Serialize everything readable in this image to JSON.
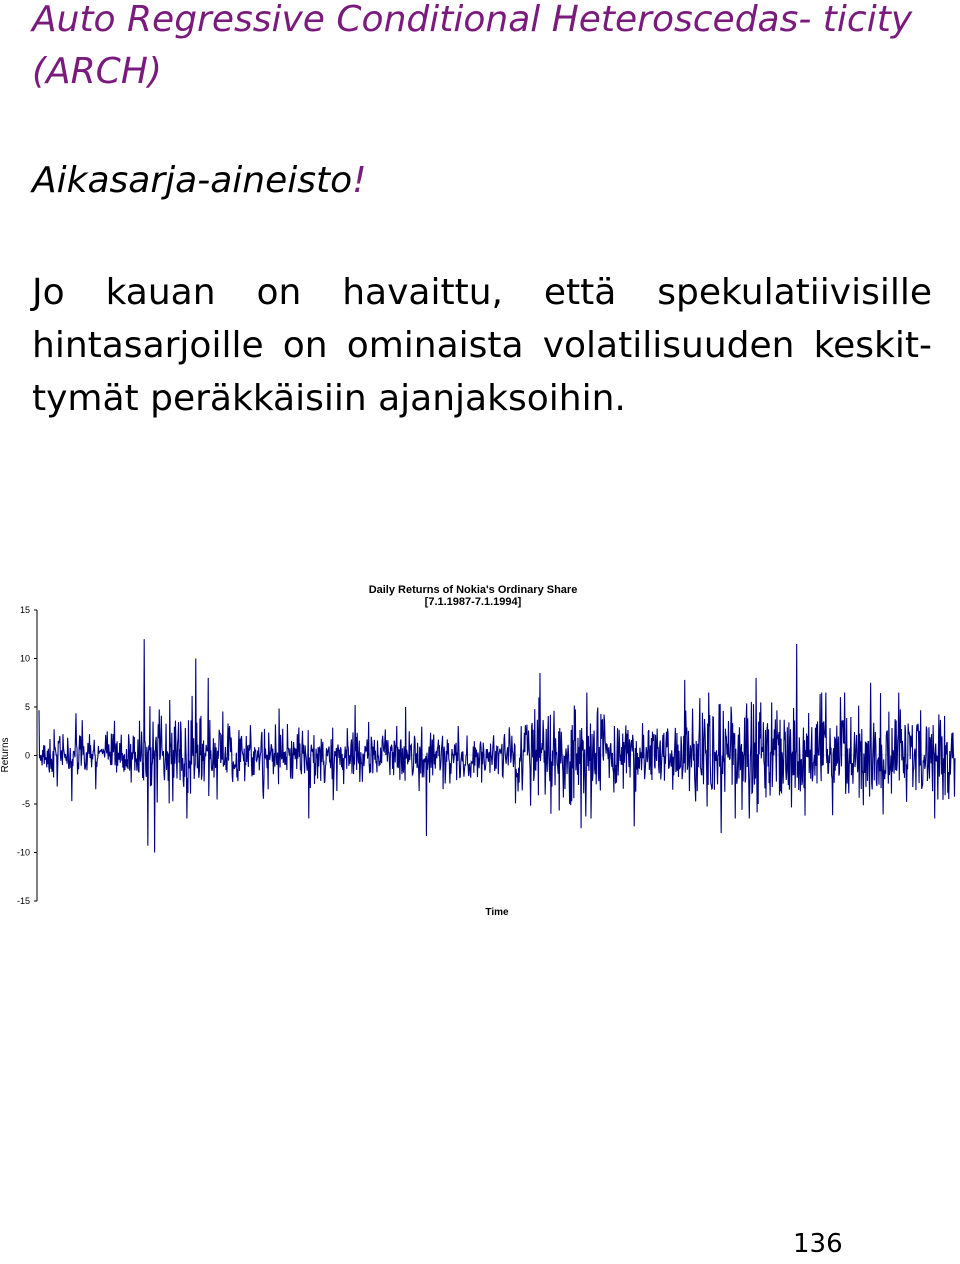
{
  "slide": {
    "title": "Auto Regressive Conditional Heteroscedas- ticity (ARCH)",
    "subtitle_main": "Aikasarja-aineisto",
    "subtitle_mark": "!",
    "paragraph": "Jo kauan on havaittu, että spekulatiivisille hintasarjoille on ominaista volatilisuuden keskit- tymät peräkkäisiin ajanjaksoihin.",
    "page_number": "136"
  },
  "colors": {
    "title": "#7a1a7c",
    "series": "#000080",
    "axis": "#000000"
  },
  "chart_data": {
    "type": "line",
    "title": "Daily Returns of Nokia's Ordinary Share",
    "subtitle": "[7.1.1987-7.1.1994]",
    "xlabel": "Time",
    "ylabel": "Returns",
    "ylim": [
      -15,
      15
    ],
    "yticks": [
      "15",
      "10",
      "5",
      "0",
      "-5",
      "-10",
      "-15"
    ],
    "grid": false,
    "legend": "none",
    "n_points": 1760,
    "series": [
      {
        "name": "",
        "seed": 7,
        "base_sd": 0.9,
        "volatility": [
          {
            "from": 0.0,
            "to": 0.1,
            "sd": 1.2
          },
          {
            "from": 0.1,
            "to": 0.2,
            "sd": 2.0
          },
          {
            "from": 0.2,
            "to": 0.32,
            "sd": 1.6
          },
          {
            "from": 0.32,
            "to": 0.46,
            "sd": 1.4
          },
          {
            "from": 0.46,
            "to": 0.52,
            "sd": 1.0
          },
          {
            "from": 0.52,
            "to": 0.62,
            "sd": 2.4
          },
          {
            "from": 0.62,
            "to": 0.72,
            "sd": 1.7
          },
          {
            "from": 0.72,
            "to": 0.88,
            "sd": 2.5
          },
          {
            "from": 0.88,
            "to": 1.0,
            "sd": 2.2
          }
        ],
        "spikes": [
          {
            "t": 0.036,
            "v": -4.7
          },
          {
            "t": 0.115,
            "v": 12.0
          },
          {
            "t": 0.119,
            "v": -9.3
          },
          {
            "t": 0.126,
            "v": -10.0
          },
          {
            "t": 0.171,
            "v": 10.0
          },
          {
            "t": 0.185,
            "v": 8.0
          },
          {
            "t": 0.345,
            "v": 5.2
          },
          {
            "t": 0.4,
            "v": 5.0
          },
          {
            "t": 0.423,
            "v": -8.3
          },
          {
            "t": 0.547,
            "v": 8.5
          },
          {
            "t": 0.559,
            "v": -6.0
          },
          {
            "t": 0.592,
            "v": -7.5
          },
          {
            "t": 0.65,
            "v": -7.3
          },
          {
            "t": 0.705,
            "v": 7.8
          },
          {
            "t": 0.745,
            "v": -8.0
          },
          {
            "t": 0.783,
            "v": 8.0
          },
          {
            "t": 0.827,
            "v": 11.5
          },
          {
            "t": 0.836,
            "v": -6.2
          },
          {
            "t": 0.908,
            "v": 7.5
          },
          {
            "t": 0.978,
            "v": -6.5
          }
        ]
      }
    ]
  }
}
